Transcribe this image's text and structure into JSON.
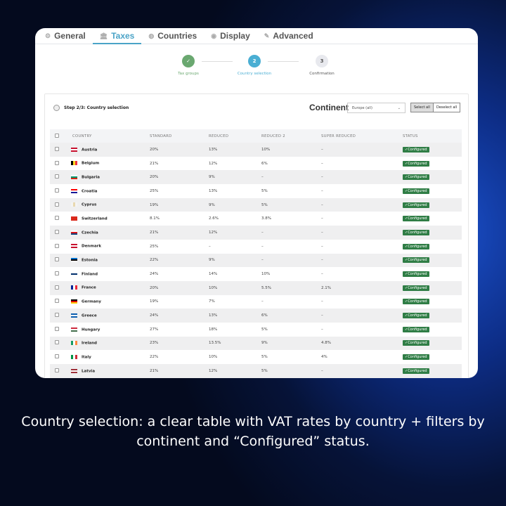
{
  "tabs": [
    {
      "label": "General",
      "icon": "gear-icon",
      "glyph": "⚙"
    },
    {
      "label": "Taxes",
      "icon": "bank-icon",
      "glyph": "🏛"
    },
    {
      "label": "Countries",
      "icon": "globe-icon",
      "glyph": "◍"
    },
    {
      "label": "Display",
      "icon": "eye-icon",
      "glyph": "◉"
    },
    {
      "label": "Advanced",
      "icon": "wrench-icon",
      "glyph": "✎"
    }
  ],
  "active_tab": "Taxes",
  "stepper": [
    {
      "num": "✓",
      "label": "Tax groups",
      "state": "done",
      "color": "#6aa870"
    },
    {
      "num": "2",
      "label": "Country selection",
      "state": "active",
      "color": "#4aaed3"
    },
    {
      "num": "3",
      "label": "Confirmation",
      "state": "pending",
      "color": "#e8e9ee"
    }
  ],
  "panel": {
    "title": "Step 2/3: Country selection",
    "continent_label": "Continent",
    "continent_value": "Europe (all)",
    "select_all": "Select all",
    "deselect_all": "Deselect all"
  },
  "columns": [
    "COUNTRY",
    "STANDARD",
    "REDUCED",
    "REDUCED 2",
    "SUPER REDUCED",
    "STATUS"
  ],
  "rows": [
    {
      "country": "Austria",
      "standard": "20%",
      "reduced": "13%",
      "reduced2": "10%",
      "super": "–",
      "status": "✓Configured",
      "flag": [
        "#c8102e",
        "#fff",
        "#c8102e"
      ],
      "dir": "h"
    },
    {
      "country": "Belgium",
      "standard": "21%",
      "reduced": "12%",
      "reduced2": "6%",
      "super": "–",
      "status": "✓Configured",
      "flag": [
        "#000",
        "#fdda24",
        "#ef3340"
      ],
      "dir": "v"
    },
    {
      "country": "Bulgaria",
      "standard": "20%",
      "reduced": "9%",
      "reduced2": "–",
      "super": "–",
      "status": "✓Configured",
      "flag": [
        "#fff",
        "#00966e",
        "#d62612"
      ],
      "dir": "h"
    },
    {
      "country": "Croatia",
      "standard": "25%",
      "reduced": "13%",
      "reduced2": "5%",
      "super": "–",
      "status": "✓Configured",
      "flag": [
        "#ff0000",
        "#fff",
        "#171796"
      ],
      "dir": "h"
    },
    {
      "country": "Cyprus",
      "standard": "19%",
      "reduced": "9%",
      "reduced2": "5%",
      "super": "–",
      "status": "✓Configured",
      "flag": [
        "#f4f4f4",
        "#e8d8b0",
        "#f4f4f4"
      ],
      "dir": "v"
    },
    {
      "country": "Switzerland",
      "standard": "8.1%",
      "reduced": "2.6%",
      "reduced2": "3.8%",
      "super": "–",
      "status": "✓Configured",
      "flag": [
        "#da291c",
        "#da291c",
        "#da291c"
      ],
      "dir": "h"
    },
    {
      "country": "Czechia",
      "standard": "21%",
      "reduced": "12%",
      "reduced2": "–",
      "super": "–",
      "status": "✓Configured",
      "flag": [
        "#fff",
        "#d7141a",
        "#11457e"
      ],
      "dir": "h"
    },
    {
      "country": "Denmark",
      "standard": "25%",
      "reduced": "–",
      "reduced2": "–",
      "super": "–",
      "status": "✓Configured",
      "flag": [
        "#c8102e",
        "#fff",
        "#c8102e"
      ],
      "dir": "h"
    },
    {
      "country": "Estonia",
      "standard": "22%",
      "reduced": "9%",
      "reduced2": "–",
      "super": "–",
      "status": "✓Configured",
      "flag": [
        "#0072ce",
        "#000",
        "#fff"
      ],
      "dir": "h"
    },
    {
      "country": "Finland",
      "standard": "24%",
      "reduced": "14%",
      "reduced2": "10%",
      "super": "–",
      "status": "✓Configured",
      "flag": [
        "#fff",
        "#002f6c",
        "#fff"
      ],
      "dir": "h"
    },
    {
      "country": "France",
      "standard": "20%",
      "reduced": "10%",
      "reduced2": "5.5%",
      "super": "2.1%",
      "status": "✓Configured",
      "flag": [
        "#002395",
        "#fff",
        "#ed2939"
      ],
      "dir": "v"
    },
    {
      "country": "Germany",
      "standard": "19%",
      "reduced": "7%",
      "reduced2": "–",
      "super": "–",
      "status": "✓Configured",
      "flag": [
        "#000",
        "#dd0000",
        "#ffce00"
      ],
      "dir": "h"
    },
    {
      "country": "Greece",
      "standard": "24%",
      "reduced": "13%",
      "reduced2": "6%",
      "super": "–",
      "status": "✓Configured",
      "flag": [
        "#0d5eaf",
        "#fff",
        "#0d5eaf"
      ],
      "dir": "h"
    },
    {
      "country": "Hungary",
      "standard": "27%",
      "reduced": "18%",
      "reduced2": "5%",
      "super": "–",
      "status": "✓Configured",
      "flag": [
        "#cd2a3e",
        "#fff",
        "#436f4d"
      ],
      "dir": "h"
    },
    {
      "country": "Ireland",
      "standard": "23%",
      "reduced": "13.5%",
      "reduced2": "9%",
      "super": "4.8%",
      "status": "✓Configured",
      "flag": [
        "#169b62",
        "#fff",
        "#ff883e"
      ],
      "dir": "v"
    },
    {
      "country": "Italy",
      "standard": "22%",
      "reduced": "10%",
      "reduced2": "5%",
      "super": "4%",
      "status": "✓Configured",
      "flag": [
        "#009246",
        "#fff",
        "#ce2b37"
      ],
      "dir": "v"
    },
    {
      "country": "Latvia",
      "standard": "21%",
      "reduced": "12%",
      "reduced2": "5%",
      "super": "–",
      "status": "✓Configured",
      "flag": [
        "#9e3039",
        "#fff",
        "#9e3039"
      ],
      "dir": "h"
    }
  ],
  "caption": "Country selection: a clear table with VAT rates by country + filters by continent and “Configured” status."
}
